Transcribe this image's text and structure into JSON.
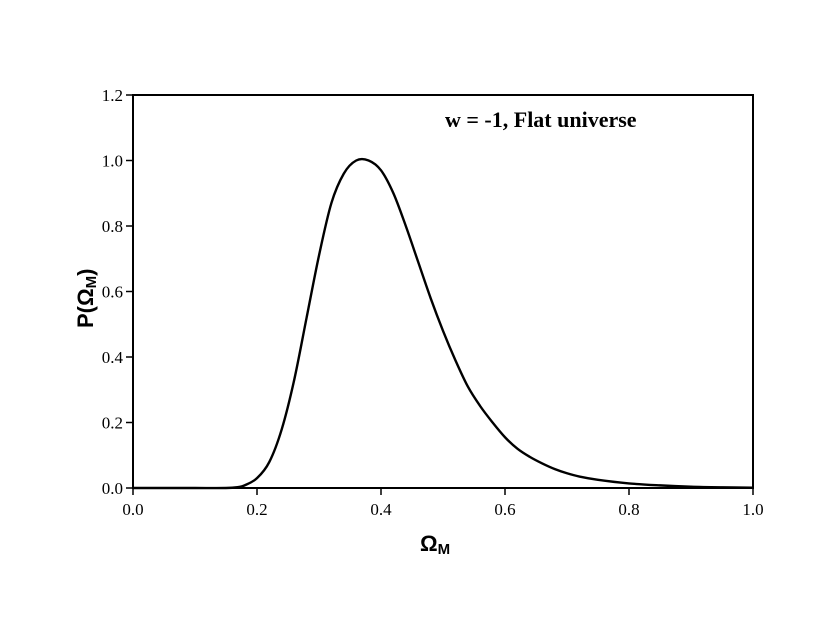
{
  "chart_data": {
    "type": "line",
    "annotation": "w = -1, Flat universe",
    "xlabel": {
      "main": "Ω",
      "sub": "M"
    },
    "ylabel": {
      "prefix": "P(",
      "main": "Ω",
      "sub": "M",
      "suffix": ")"
    },
    "xlim": [
      0,
      1
    ],
    "ylim": [
      0,
      1.2
    ],
    "x_ticks": [
      "0.0",
      "0.2",
      "0.4",
      "0.6",
      "0.8",
      "1.0"
    ],
    "y_ticks": [
      "0.0",
      "0.2",
      "0.4",
      "0.6",
      "0.8",
      "1.0",
      "1.2"
    ],
    "grid": false,
    "series": [
      {
        "x": [
          0.0,
          0.05,
          0.1,
          0.15,
          0.17,
          0.18,
          0.2,
          0.22,
          0.24,
          0.26,
          0.28,
          0.3,
          0.32,
          0.34,
          0.36,
          0.38,
          0.4,
          0.42,
          0.44,
          0.46,
          0.48,
          0.5,
          0.52,
          0.54,
          0.56,
          0.58,
          0.6,
          0.62,
          0.64,
          0.66,
          0.68,
          0.7,
          0.72,
          0.75,
          0.8,
          0.85,
          0.9,
          0.95,
          1.0
        ],
        "y": [
          0.0,
          0.0,
          0.0,
          0.0,
          0.003,
          0.008,
          0.03,
          0.08,
          0.18,
          0.33,
          0.52,
          0.71,
          0.87,
          0.96,
          1.0,
          1.0,
          0.97,
          0.9,
          0.8,
          0.69,
          0.58,
          0.48,
          0.39,
          0.31,
          0.25,
          0.2,
          0.155,
          0.12,
          0.095,
          0.075,
          0.058,
          0.045,
          0.035,
          0.025,
          0.014,
          0.008,
          0.004,
          0.002,
          0.001
        ]
      }
    ],
    "colors": {
      "line": "#000000",
      "frame": "#000000"
    }
  }
}
